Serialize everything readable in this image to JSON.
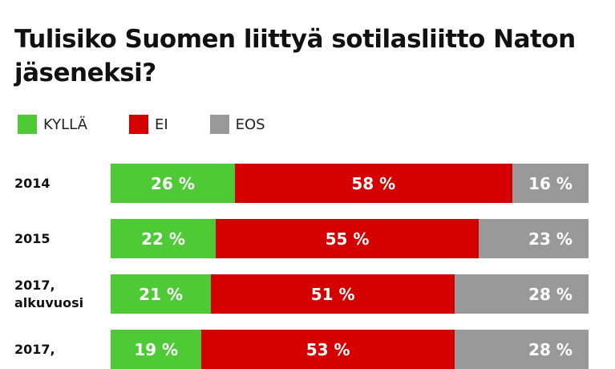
{
  "chart_data": {
    "type": "bar",
    "orientation": "horizontal",
    "stacked": true,
    "title": "Tulisiko Suomen liittyä sotilasliitto Naton jäseneksi?",
    "legend_position": "top-left",
    "series": [
      {
        "name": "KYLLÄ",
        "color": "#4fca37",
        "values": [
          26,
          22,
          21,
          19
        ]
      },
      {
        "name": "EI",
        "color": "#d40000",
        "values": [
          58,
          55,
          51,
          53
        ]
      },
      {
        "name": "EOS",
        "color": "#999999",
        "values": [
          16,
          23,
          28,
          28
        ]
      }
    ],
    "categories": [
      [
        "2014"
      ],
      [
        "2015"
      ],
      [
        "2017,",
        "alkuvuosi"
      ],
      [
        "2017,"
      ]
    ],
    "unit": "%",
    "xlim": [
      0,
      100
    ]
  }
}
